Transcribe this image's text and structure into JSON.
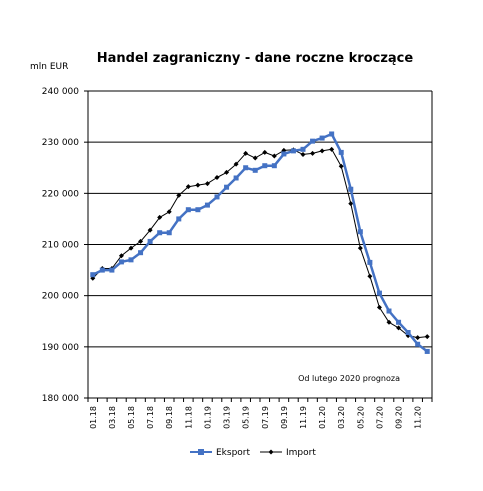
{
  "chart_data": {
    "type": "line",
    "title": "Handel zagraniczny - dane roczne kroczące",
    "unit_label": "mln EUR",
    "annotation": "Od lutego 2020 prognoza",
    "ylim": [
      180000,
      240000
    ],
    "yticks": [
      {
        "value": 180000,
        "label": "180 000"
      },
      {
        "value": 190000,
        "label": "190 000"
      },
      {
        "value": 200000,
        "label": "200 000"
      },
      {
        "value": 210000,
        "label": "210 000"
      },
      {
        "value": 220000,
        "label": "220 000"
      },
      {
        "value": 230000,
        "label": "230 000"
      },
      {
        "value": 240000,
        "label": "240 000"
      }
    ],
    "grid": true,
    "legend": "bottom",
    "x": [
      "01.18",
      "02.18",
      "03.18",
      "04.18",
      "05.18",
      "06.18",
      "07.18",
      "08.18",
      "09.18",
      "10.18",
      "11.18",
      "12.18",
      "01.19",
      "02.19",
      "03.19",
      "04.19",
      "05.19",
      "06.19",
      "07.19",
      "08.19",
      "09.19",
      "10.19",
      "11.19",
      "12.19",
      "01.20",
      "02.20",
      "03.20",
      "04.20",
      "05.20",
      "06.20",
      "07.20",
      "08.20",
      "09.20",
      "10.20",
      "11.20",
      "12.20"
    ],
    "xtick_labels": [
      "01.18",
      "03.18",
      "05.18",
      "07.18",
      "09.18",
      "11.18",
      "01.19",
      "03.19",
      "05.19",
      "07.19",
      "09.19",
      "11.19",
      "01.20",
      "03.20",
      "05.20",
      "07.20",
      "09.20",
      "11.20"
    ],
    "series": [
      {
        "name": "Eksport",
        "color": "#4472C4",
        "marker": "square",
        "values": [
          204100,
          205000,
          205000,
          206600,
          207000,
          208400,
          210600,
          212300,
          212300,
          215000,
          216800,
          216800,
          217700,
          219300,
          221200,
          223000,
          225000,
          224500,
          225400,
          225400,
          227700,
          228300,
          228600,
          230200,
          230800,
          231600,
          228000,
          220800,
          212500,
          206500,
          200500,
          197000,
          194800,
          192800,
          190500,
          189100
        ]
      },
      {
        "name": "Import",
        "color": "#000000",
        "marker": "diamond",
        "values": [
          203400,
          205300,
          205300,
          207800,
          209300,
          210600,
          212800,
          215300,
          216400,
          219600,
          221300,
          221600,
          221900,
          223100,
          224100,
          225700,
          227800,
          226900,
          228000,
          227300,
          228400,
          228500,
          227600,
          227800,
          228300,
          228600,
          225300,
          218000,
          209300,
          203800,
          197700,
          194800,
          193700,
          192200,
          191800,
          192000
        ]
      }
    ]
  }
}
